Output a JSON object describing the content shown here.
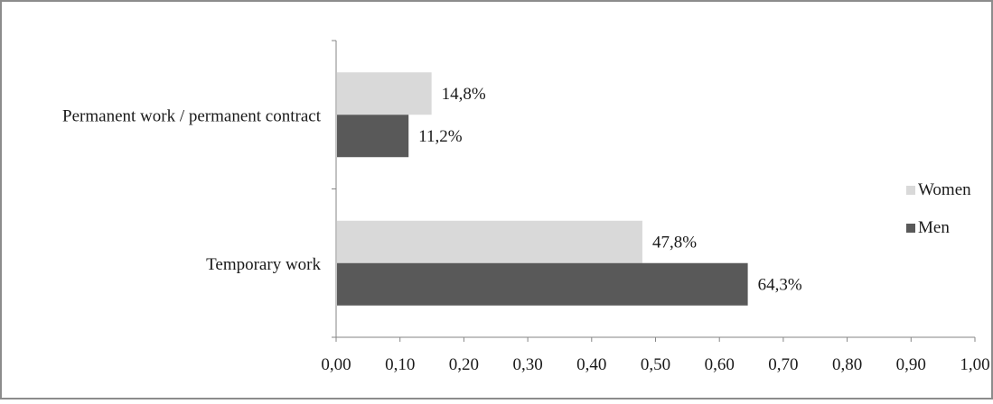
{
  "chart_data": {
    "type": "bar",
    "orientation": "horizontal",
    "categories": [
      "Permanent work / permanent contract",
      "Temporary work"
    ],
    "series": [
      {
        "name": "Women",
        "values": [
          0.148,
          0.478
        ],
        "labels": [
          "14,8%",
          "47,8%"
        ],
        "color": "#d9d9d9"
      },
      {
        "name": "Men",
        "values": [
          0.112,
          0.643
        ],
        "labels": [
          "11,2%",
          "64,3%"
        ],
        "color": "#595959"
      }
    ],
    "xlim": [
      0,
      1.0
    ],
    "xticks": [
      "0,00",
      "0,10",
      "0,20",
      "0,30",
      "0,40",
      "0,50",
      "0,60",
      "0,70",
      "0,80",
      "0,90",
      "1,00"
    ],
    "grid": false,
    "legend_position": "right",
    "title": "",
    "xlabel": "",
    "ylabel": ""
  }
}
